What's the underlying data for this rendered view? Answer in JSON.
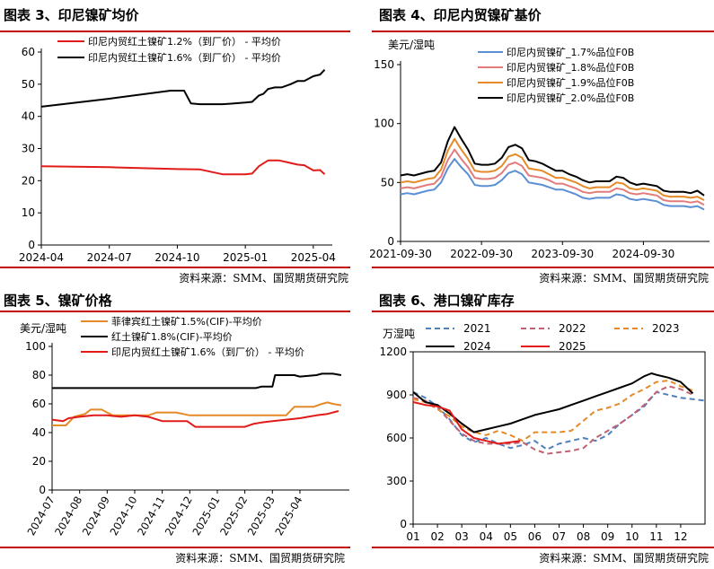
{
  "panels": [
    {
      "title": "图表 3、印尼镍矿均价",
      "source": "资料来源：SMM、国贸期货研究院"
    },
    {
      "title": "图表 4、印尼内贸镍矿基价",
      "source": "资料来源：SMM、国贸期货研究院"
    },
    {
      "title": "图表 5、镍矿价格",
      "source": "资料来源：SMM、国贸期货研究院"
    },
    {
      "title": "图表 6、港口镍矿库存",
      "source": "资料来源：SMM、国贸期货研究院"
    }
  ],
  "chart_data": [
    {
      "type": "line",
      "title": "图表 3、印尼镍矿均价",
      "ylabel": "",
      "ylim": [
        0,
        60
      ],
      "yticks": [
        0,
        10,
        20,
        30,
        40,
        50,
        60
      ],
      "xlim": [
        0,
        12.6
      ],
      "xticks": [
        {
          "v": 0,
          "label": "2024-04"
        },
        {
          "v": 3,
          "label": "2024-07"
        },
        {
          "v": 6,
          "label": "2024-10"
        },
        {
          "v": 9,
          "label": "2025-01"
        },
        {
          "v": 12,
          "label": "2025-04"
        }
      ],
      "legend": "top",
      "series": [
        {
          "name": "印尼内贸红土镍矿1.2%（到厂价） - 平均价",
          "color": "#e11a1a",
          "x": [
            0,
            3,
            6,
            7,
            8,
            9,
            9.3,
            9.6,
            10,
            10.5,
            11,
            11.3,
            11.6,
            12,
            12.3,
            12.5
          ],
          "y": [
            24.5,
            24.2,
            23.6,
            23.5,
            22,
            22,
            22.2,
            24.5,
            26.3,
            26.3,
            25.5,
            25,
            24.8,
            23.2,
            23.3,
            22
          ]
        },
        {
          "name": "印尼内贸红土镍矿1.6%（到厂价） - 平均价",
          "color": "#000000",
          "x": [
            0,
            3,
            5.7,
            6.3,
            6.6,
            7,
            8,
            8.5,
            9,
            9.3,
            9.6,
            9.8,
            10,
            10.3,
            10.6,
            11,
            11.3,
            11.6,
            12,
            12.3,
            12.5
          ],
          "y": [
            43,
            45.5,
            48,
            48,
            44,
            43.8,
            43.8,
            44,
            44.3,
            44.5,
            46.5,
            47,
            48.5,
            49,
            49,
            50,
            51,
            51,
            52.5,
            53,
            54.5
          ]
        }
      ]
    },
    {
      "type": "line",
      "title": "图表 4、印尼内贸镍矿基价",
      "ylabel": "美元/湿吨",
      "ylim": [
        0,
        150
      ],
      "yticks": [
        0,
        50,
        100,
        150
      ],
      "xlim": [
        0,
        45
      ],
      "xticks": [
        {
          "v": 0,
          "label": "2021-09-30"
        },
        {
          "v": 12,
          "label": "2022-09-30"
        },
        {
          "v": 24,
          "label": "2023-09-30"
        },
        {
          "v": 36,
          "label": "2024-09-30"
        }
      ],
      "legend": "top",
      "series": [
        {
          "name": "印尼内贸镍矿_1.7%品位F0B",
          "color": "#5b8fd4",
          "x": [
            0,
            1,
            2,
            4,
            5,
            6,
            7,
            8,
            9,
            10,
            11,
            12,
            13,
            14,
            15,
            16,
            17,
            18,
            19,
            20,
            21,
            22,
            23,
            24,
            25,
            26,
            27,
            28,
            29,
            30,
            31,
            32,
            33,
            34,
            35,
            36,
            37,
            38,
            39,
            40,
            41,
            42,
            43,
            44,
            45
          ],
          "y": [
            40,
            41,
            40,
            43,
            44,
            50,
            62,
            70,
            63,
            57,
            48,
            47,
            47,
            48,
            52,
            58,
            60,
            57,
            50,
            49,
            48,
            46,
            44,
            44,
            42,
            40,
            37,
            36,
            37,
            37,
            37,
            40,
            39,
            36,
            35,
            36,
            35,
            34,
            31,
            30,
            30,
            30,
            29,
            30,
            27
          ]
        },
        {
          "name": "印尼内贸镍矿_1.8%品位F0B",
          "color": "#e27b7b",
          "x": [
            0,
            1,
            2,
            4,
            5,
            6,
            7,
            8,
            9,
            10,
            11,
            12,
            13,
            14,
            15,
            16,
            17,
            18,
            19,
            20,
            21,
            22,
            23,
            24,
            25,
            26,
            27,
            28,
            29,
            30,
            31,
            32,
            33,
            34,
            35,
            36,
            37,
            38,
            39,
            40,
            41,
            42,
            43,
            44,
            45
          ],
          "y": [
            45,
            46,
            45,
            48,
            49,
            55,
            69,
            78,
            70,
            63,
            54,
            53,
            53,
            54,
            58,
            65,
            67,
            64,
            56,
            55,
            54,
            52,
            49,
            49,
            47,
            45,
            42,
            41,
            42,
            42,
            42,
            45,
            44,
            41,
            40,
            41,
            40,
            39,
            35,
            34,
            34,
            34,
            33,
            34,
            31
          ]
        },
        {
          "name": "印尼内贸镍矿_1.9%品位F0B",
          "color": "#e58a28",
          "x": [
            0,
            1,
            2,
            4,
            5,
            6,
            7,
            8,
            9,
            10,
            11,
            12,
            13,
            14,
            15,
            16,
            17,
            18,
            19,
            20,
            21,
            22,
            23,
            24,
            25,
            26,
            27,
            28,
            29,
            30,
            31,
            32,
            33,
            34,
            35,
            36,
            37,
            38,
            39,
            40,
            41,
            42,
            43,
            44,
            45
          ],
          "y": [
            50,
            51,
            50,
            53,
            54,
            61,
            77,
            87,
            78,
            70,
            60,
            59,
            59,
            60,
            64,
            72,
            74,
            71,
            62,
            61,
            60,
            57,
            54,
            54,
            52,
            50,
            47,
            45,
            46,
            46,
            46,
            50,
            49,
            45,
            44,
            45,
            44,
            43,
            39,
            38,
            38,
            38,
            37,
            38,
            35
          ]
        },
        {
          "name": "印尼内贸镍矿_2.0%品位F0B",
          "color": "#000000",
          "x": [
            0,
            1,
            2,
            4,
            5,
            6,
            7,
            8,
            9,
            10,
            11,
            12,
            13,
            14,
            15,
            16,
            17,
            18,
            19,
            20,
            21,
            22,
            23,
            24,
            25,
            26,
            27,
            28,
            29,
            30,
            31,
            32,
            33,
            34,
            35,
            36,
            37,
            38,
            39,
            40,
            41,
            42,
            43,
            44,
            45
          ],
          "y": [
            56,
            57,
            56,
            59,
            60,
            67,
            85,
            97,
            87,
            78,
            66,
            65,
            65,
            66,
            71,
            80,
            82,
            79,
            69,
            68,
            66,
            63,
            60,
            60,
            57,
            55,
            52,
            50,
            51,
            51,
            51,
            55,
            54,
            50,
            48,
            49,
            48,
            47,
            43,
            42,
            42,
            42,
            41,
            43,
            39
          ]
        }
      ]
    },
    {
      "type": "line",
      "title": "图表 5、镍矿价格",
      "ylabel": "美元/湿吨",
      "ylim": [
        0,
        100
      ],
      "yticks": [
        0,
        20,
        40,
        60,
        80,
        100
      ],
      "xlim": [
        0,
        10.6
      ],
      "xticks": [
        {
          "v": 0,
          "label": "2024-07"
        },
        {
          "v": 1,
          "label": "2024-08"
        },
        {
          "v": 2,
          "label": "2024-09"
        },
        {
          "v": 3,
          "label": "2024-10"
        },
        {
          "v": 4,
          "label": "2024-11"
        },
        {
          "v": 5,
          "label": "2024-12"
        },
        {
          "v": 6,
          "label": "2025-01"
        },
        {
          "v": 7,
          "label": "2025-02"
        },
        {
          "v": 8,
          "label": "2025-03"
        },
        {
          "v": 9,
          "label": "2025-04"
        }
      ],
      "legend": "top",
      "series": [
        {
          "name": "菲律宾红土镍矿1.5%(CIF)-平均价",
          "color": "#e58a28",
          "x": [
            0,
            0.5,
            0.8,
            1.2,
            1.4,
            1.8,
            2,
            2.2,
            3,
            3.5,
            3.8,
            4.5,
            5,
            5.5,
            6,
            6.5,
            7,
            7.5,
            7.8,
            8,
            8.5,
            8.8,
            9,
            9.5,
            9.8,
            10,
            10.2,
            10.5
          ],
          "y": [
            45,
            45,
            51,
            53,
            56,
            56,
            54,
            52,
            52,
            52,
            54,
            54,
            52,
            52,
            52,
            52,
            52,
            52,
            52,
            52,
            52,
            58,
            58,
            58,
            60,
            61,
            60,
            59
          ]
        },
        {
          "name": "红土镍矿1.8%(CIF)-平均价",
          "color": "#000000",
          "x": [
            0,
            2,
            4,
            6,
            7.4,
            7.6,
            8,
            8.1,
            8.8,
            9,
            9.6,
            9.8,
            10.2,
            10.5
          ],
          "y": [
            71,
            71,
            71,
            71,
            71,
            72,
            72,
            80,
            80,
            79,
            80,
            81,
            81,
            80
          ]
        },
        {
          "name": "印尼内贸红土镍矿1.6%（到厂价） - 平均价",
          "color": "#e11a1a",
          "x": [
            0,
            0.4,
            0.6,
            1,
            1.5,
            2,
            2.5,
            3,
            3.5,
            4,
            4.5,
            4.9,
            5.2,
            6,
            6.5,
            7,
            7.3,
            7.6,
            8,
            8.5,
            9,
            9.3,
            9.6,
            10,
            10.4
          ],
          "y": [
            49,
            48,
            50,
            51,
            52,
            52,
            51,
            52,
            51,
            48,
            48,
            48,
            44,
            44,
            44,
            44,
            46,
            47,
            48,
            49,
            50,
            51,
            52,
            53,
            55
          ]
        }
      ]
    },
    {
      "type": "line",
      "title": "图表 6、港口镍矿库存",
      "ylabel": "万湿吨",
      "ylim": [
        0,
        1200
      ],
      "yticks": [
        0,
        300,
        600,
        900,
        1200
      ],
      "xlim": [
        1,
        13
      ],
      "xticks": [
        {
          "v": 1,
          "label": "01"
        },
        {
          "v": 2,
          "label": "02"
        },
        {
          "v": 3,
          "label": "03"
        },
        {
          "v": 4,
          "label": "04"
        },
        {
          "v": 5,
          "label": "05"
        },
        {
          "v": 6,
          "label": "06"
        },
        {
          "v": 7,
          "label": "07"
        },
        {
          "v": 8,
          "label": "08"
        },
        {
          "v": 9,
          "label": "09"
        },
        {
          "v": 10,
          "label": "10"
        },
        {
          "v": 11,
          "label": "11"
        },
        {
          "v": 12,
          "label": "12"
        }
      ],
      "legend": "top",
      "series": [
        {
          "name": "2021",
          "color": "#4f81bd",
          "dash": true,
          "x": [
            1,
            1.5,
            2,
            2.5,
            3,
            3.5,
            4,
            4.5,
            5,
            5.5,
            6,
            6.5,
            7,
            7.5,
            8,
            8.5,
            9,
            9.5,
            10,
            10.5,
            11,
            11.5,
            12,
            12.5,
            13
          ],
          "y": [
            920,
            880,
            820,
            730,
            620,
            570,
            600,
            560,
            530,
            550,
            580,
            520,
            560,
            580,
            600,
            580,
            620,
            700,
            760,
            820,
            920,
            900,
            880,
            870,
            860
          ]
        },
        {
          "name": "2022",
          "color": "#c06070",
          "dash": true,
          "x": [
            1,
            1.5,
            2,
            2.5,
            3,
            3.5,
            4,
            4.5,
            5,
            5.5,
            6,
            6.5,
            7,
            7.5,
            8,
            8.5,
            9,
            9.5,
            10,
            10.5,
            11,
            11.5,
            12,
            12.5
          ],
          "y": [
            880,
            860,
            810,
            720,
            630,
            580,
            560,
            560,
            560,
            570,
            520,
            490,
            500,
            510,
            530,
            600,
            650,
            700,
            760,
            830,
            920,
            960,
            940,
            900
          ]
        },
        {
          "name": "2023",
          "color": "#e58a28",
          "dash": true,
          "x": [
            1,
            1.5,
            2,
            2.5,
            3,
            3.5,
            4,
            4.5,
            5,
            5.5,
            6,
            6.5,
            7,
            7.5,
            8,
            8.5,
            9,
            9.5,
            10,
            10.5,
            11,
            11.5,
            12,
            12.5
          ],
          "y": [
            870,
            850,
            800,
            750,
            680,
            640,
            620,
            650,
            620,
            580,
            640,
            640,
            640,
            650,
            720,
            790,
            810,
            840,
            900,
            940,
            990,
            1000,
            960,
            930
          ]
        },
        {
          "name": "2024",
          "color": "#000000",
          "dash": false,
          "x": [
            1,
            1.5,
            2,
            2.5,
            3,
            3.5,
            4,
            4.5,
            5,
            5.5,
            6,
            6.5,
            7,
            7.5,
            8,
            8.5,
            9,
            9.5,
            10,
            10.5,
            10.8,
            11,
            11.5,
            12,
            12.5
          ],
          "y": [
            920,
            850,
            830,
            770,
            700,
            640,
            660,
            680,
            700,
            730,
            760,
            780,
            800,
            830,
            860,
            890,
            920,
            950,
            980,
            1030,
            1050,
            1040,
            1020,
            990,
            910
          ]
        },
        {
          "name": "2025",
          "color": "#e11a1a",
          "dash": false,
          "x": [
            1,
            1.5,
            2,
            2.5,
            3,
            3.5,
            4,
            4.5,
            5,
            5.4
          ],
          "y": [
            850,
            830,
            820,
            790,
            660,
            600,
            580,
            560,
            570,
            580
          ]
        }
      ]
    }
  ]
}
